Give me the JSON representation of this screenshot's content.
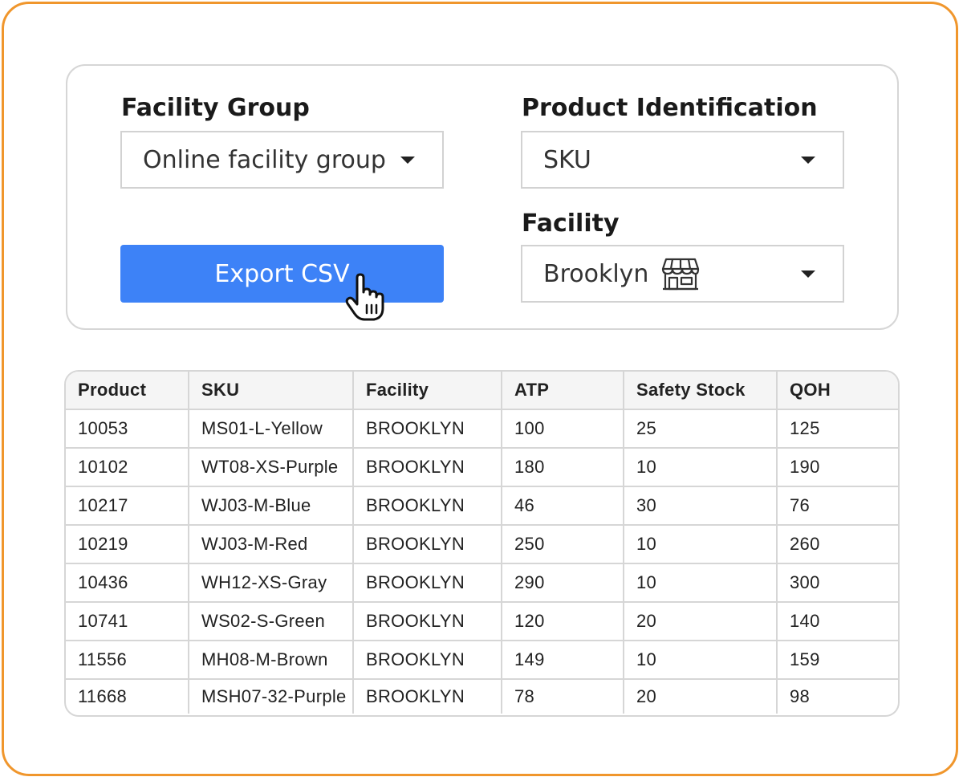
{
  "filters": {
    "facility_group": {
      "label": "Facility Group",
      "value": "Online facility group"
    },
    "product_identification": {
      "label": "Product Identification",
      "value": "SKU"
    },
    "facility": {
      "label": "Facility",
      "value": "Brooklyn",
      "icon": "store-icon"
    },
    "export_label": "Export CSV"
  },
  "table": {
    "headers": [
      "Product",
      "SKU",
      "Facility",
      "ATP",
      "Safety Stock",
      "QOH"
    ],
    "rows": [
      [
        "10053",
        "MS01-L-Yellow",
        "BROOKLYN",
        "100",
        "25",
        "125"
      ],
      [
        "10102",
        "WT08-XS-Purple",
        "BROOKLYN",
        "180",
        "10",
        "190"
      ],
      [
        "10217",
        "WJ03-M-Blue",
        "BROOKLYN",
        "46",
        "30",
        "76"
      ],
      [
        "10219",
        "WJ03-M-Red",
        "BROOKLYN",
        "250",
        "10",
        "260"
      ],
      [
        "10436",
        "WH12-XS-Gray",
        "BROOKLYN",
        "290",
        "10",
        "300"
      ],
      [
        "10741",
        "WS02-S-Green",
        "BROOKLYN",
        "120",
        "20",
        "140"
      ],
      [
        "11556",
        "MH08-M-Brown",
        "BROOKLYN",
        "149",
        "10",
        "159"
      ],
      [
        "11668",
        "MSH07-32-Purple",
        "BROOKLYN",
        "78",
        "20",
        "98"
      ]
    ]
  },
  "colors": {
    "accent": "#3d82f7",
    "frame_border": "#f0962c",
    "border": "#d6d6d6"
  }
}
